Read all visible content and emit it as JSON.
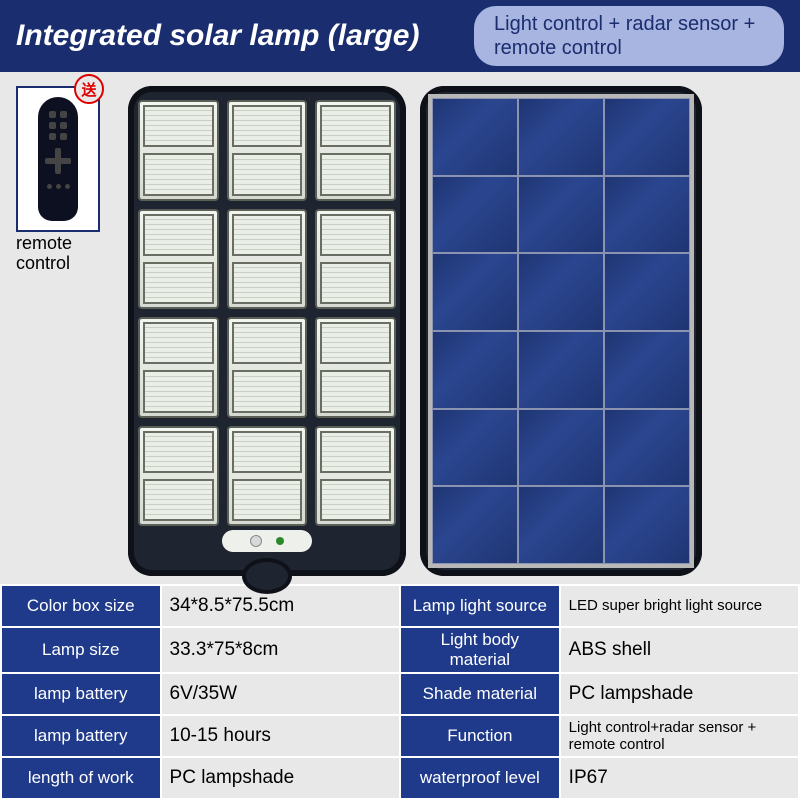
{
  "header": {
    "title": "Integrated solar lamp (large)",
    "subtitle": "Light control + radar sensor + remote control"
  },
  "remote": {
    "badge": "送",
    "label": "remote control"
  },
  "colors": {
    "header_bg": "#1a2d6e",
    "subtitle_bg": "#a8b5e0",
    "label_bg": "#1f3a8a",
    "page_bg": "#e8e8e9",
    "lamp_body": "#1e2430",
    "solar_cell": "#233a7a",
    "badge_color": "#d00"
  },
  "lamp_front": {
    "grid_cols": 3,
    "grid_rows": 4
  },
  "solar_panel": {
    "grid_cols": 3,
    "grid_rows": 6
  },
  "specs": {
    "rows": [
      {
        "l1": "Color box size",
        "v1": "34*8.5*75.5cm",
        "l2": "Lamp light source",
        "v2": "LED super bright light source",
        "v2_small": true
      },
      {
        "l1": "Lamp size",
        "v1": "33.3*75*8cm",
        "l2": "Light body material",
        "v2": "ABS shell"
      },
      {
        "l1": "lamp battery",
        "v1": "6V/35W",
        "l2": "Shade material",
        "v2": "PC lampshade"
      },
      {
        "l1": "lamp battery",
        "v1": "10-15 hours",
        "l2": "Function",
        "v2": "Light control+radar sensor + remote control",
        "v2_small": true
      },
      {
        "l1": "length of work",
        "v1": "PC lampshade",
        "l2": "waterproof level",
        "v2": "IP67"
      }
    ]
  }
}
